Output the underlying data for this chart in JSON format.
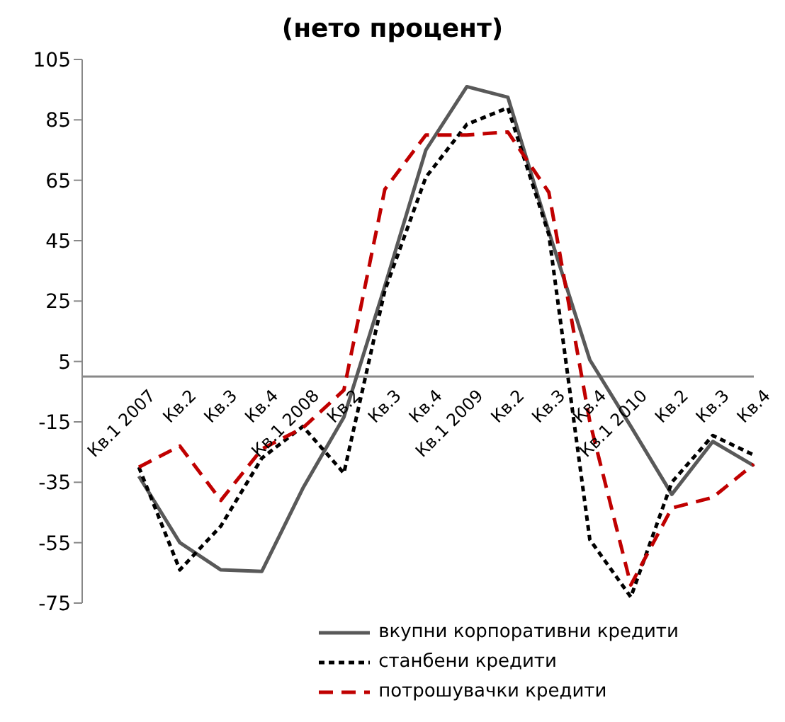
{
  "chart_data": {
    "type": "line",
    "title": "(нето процент)",
    "categories": [
      "Кв.1 2007",
      "Кв.2",
      "Кв.3",
      "Кв.4",
      "Кв.1 2008",
      "Кв.2",
      "Кв.3",
      "Кв.4",
      "Кв.1 2009",
      "Кв.2",
      "Кв.3",
      "Кв.4",
      "Кв.1 2010",
      "Кв.2",
      "Кв.3",
      "Кв.4"
    ],
    "series": [
      {
        "name": "вкупни корпоративни кредити",
        "color": "#595959",
        "line_style": "solid",
        "values": [
          -33,
          -55,
          -64,
          -64.5,
          -37,
          -13.5,
          30,
          75,
          96,
          92.5,
          48,
          5.5,
          -16.5,
          -39,
          -21.5,
          -29.5
        ]
      },
      {
        "name": "станбени кредити",
        "color": "#000000",
        "line_style": "dotted",
        "values": [
          -30,
          -64,
          -49.5,
          -27,
          -16.5,
          -32,
          28.5,
          66,
          83.5,
          89,
          47,
          -54,
          -73,
          -35,
          -19.5,
          -26
        ]
      },
      {
        "name": "потрошувачки кредити",
        "color": "#c00000",
        "line_style": "dashed",
        "values": [
          -30,
          -23,
          -41,
          -24,
          -17,
          -4.5,
          62,
          80,
          80,
          81,
          61,
          -15,
          -69,
          -43.5,
          -40,
          -29
        ]
      }
    ],
    "ylim": [
      -75,
      105
    ],
    "yticks": [
      -75,
      -55,
      -35,
      -15,
      5,
      25,
      45,
      65,
      85,
      105
    ],
    "grid": false,
    "legend": "bottom",
    "marker": "none"
  }
}
